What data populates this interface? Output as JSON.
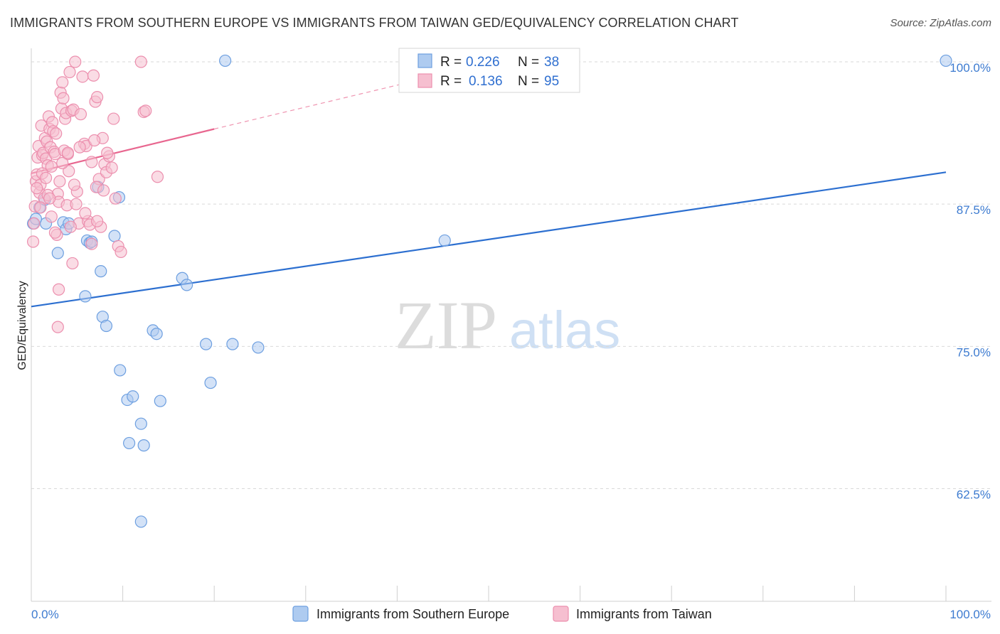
{
  "header": {
    "title": "IMMIGRANTS FROM SOUTHERN EUROPE VS IMMIGRANTS FROM TAIWAN GED/EQUIVALENCY CORRELATION CHART",
    "source": "Source: ZipAtlas.com"
  },
  "watermark": {
    "zip": "ZIP",
    "atlas": "atlas"
  },
  "colors": {
    "blue_fill": "#aecbf0",
    "blue_stroke": "#6d9fe0",
    "blue_line": "#2c6fd0",
    "pink_fill": "#f6bfd0",
    "pink_stroke": "#ec8fae",
    "pink_line": "#e8668f",
    "grid": "#d9d9d9",
    "tick_text": "#3d7bd0"
  },
  "legend": {
    "rows": [
      {
        "r_label": "R =",
        "r_value": "0.226",
        "n_label": "N =",
        "n_value": "38",
        "series": "blue"
      },
      {
        "r_label": "R =",
        "r_value": "0.136",
        "n_label": "N =",
        "n_value": "95",
        "series": "pink"
      }
    ]
  },
  "chart_data": {
    "type": "scatter",
    "title": "IMMIGRANTS FROM SOUTHERN EUROPE VS IMMIGRANTS FROM TAIWAN GED/EQUIVALENCY CORRELATION CHART",
    "xlabel": "",
    "ylabel": "GED/Equivalency",
    "xlim": [
      0,
      100
    ],
    "ylim": [
      52.6,
      102.0
    ],
    "x_tick_labels": [
      "0.0%",
      "100.0%"
    ],
    "y_ticks": [
      62.5,
      75.0,
      87.5,
      100.0
    ],
    "y_tick_labels": [
      "62.5%",
      "75.0%",
      "87.5%",
      "100.0%"
    ],
    "grid": true,
    "legend_position": "top-center",
    "series": [
      {
        "name": "Immigrants from Southern Europe",
        "color": "blue",
        "r": 0.226,
        "n": 38,
        "trend": {
          "x0": 0,
          "y0": 78.5,
          "x1": 100,
          "y1": 90.3
        },
        "points": [
          [
            0.2,
            85.8
          ],
          [
            0.9,
            87.2
          ],
          [
            1.5,
            87.9
          ],
          [
            1.6,
            85.8
          ],
          [
            2.9,
            83.2
          ],
          [
            3.5,
            85.9
          ],
          [
            3.8,
            85.3
          ],
          [
            4.1,
            85.8
          ],
          [
            6.1,
            84.3
          ],
          [
            6.4,
            84.1
          ],
          [
            6.6,
            84.2
          ],
          [
            5.9,
            79.4
          ],
          [
            7.3,
            89.0
          ],
          [
            7.6,
            81.6
          ],
          [
            7.8,
            77.6
          ],
          [
            8.2,
            76.8
          ],
          [
            9.1,
            84.7
          ],
          [
            9.6,
            88.1
          ],
          [
            9.7,
            72.9
          ],
          [
            10.5,
            70.3
          ],
          [
            11.1,
            70.6
          ],
          [
            10.7,
            66.5
          ],
          [
            12.0,
            68.2
          ],
          [
            12.3,
            66.3
          ],
          [
            12.0,
            59.6
          ],
          [
            13.3,
            76.4
          ],
          [
            13.7,
            76.1
          ],
          [
            14.1,
            70.2
          ],
          [
            16.5,
            81.0
          ],
          [
            17.0,
            80.4
          ],
          [
            19.1,
            75.2
          ],
          [
            19.6,
            71.8
          ],
          [
            22.0,
            75.2
          ],
          [
            24.8,
            74.9
          ],
          [
            21.2,
            100.1
          ],
          [
            45.2,
            84.3
          ],
          [
            100.0,
            100.1
          ],
          [
            0.5,
            86.2
          ]
        ]
      },
      {
        "name": "Immigrants from Taiwan",
        "color": "pink",
        "r": 0.136,
        "n": 95,
        "trend": {
          "x0": 0,
          "y0": 90.2,
          "x1": 20,
          "y1": 94.1
        },
        "trend_dashed": {
          "x0": 20,
          "y0": 94.1,
          "x1": 47,
          "y1": 99.3
        },
        "points": [
          [
            0.2,
            84.2
          ],
          [
            0.4,
            87.3
          ],
          [
            0.5,
            89.5
          ],
          [
            0.6,
            90.1
          ],
          [
            0.7,
            91.6
          ],
          [
            0.8,
            92.6
          ],
          [
            0.9,
            88.5
          ],
          [
            1.0,
            89.2
          ],
          [
            1.1,
            94.4
          ],
          [
            1.2,
            91.8
          ],
          [
            1.3,
            92.0
          ],
          [
            1.4,
            88.0
          ],
          [
            1.5,
            93.3
          ],
          [
            1.6,
            91.5
          ],
          [
            1.7,
            93.0
          ],
          [
            1.8,
            90.9
          ],
          [
            1.9,
            95.2
          ],
          [
            2.0,
            94.1
          ],
          [
            2.1,
            92.5
          ],
          [
            2.2,
            90.8
          ],
          [
            2.3,
            94.7
          ],
          [
            2.4,
            93.9
          ],
          [
            2.5,
            92.1
          ],
          [
            2.6,
            91.9
          ],
          [
            2.7,
            93.7
          ],
          [
            2.8,
            84.8
          ],
          [
            2.9,
            88.4
          ],
          [
            3.0,
            87.7
          ],
          [
            3.1,
            89.5
          ],
          [
            3.2,
            97.3
          ],
          [
            3.3,
            95.9
          ],
          [
            3.4,
            98.2
          ],
          [
            3.5,
            96.8
          ],
          [
            3.6,
            92.2
          ],
          [
            3.7,
            95.0
          ],
          [
            3.8,
            95.5
          ],
          [
            3.9,
            87.4
          ],
          [
            4.0,
            91.9
          ],
          [
            4.1,
            90.4
          ],
          [
            4.2,
            99.1
          ],
          [
            4.4,
            95.7
          ],
          [
            4.6,
            95.8
          ],
          [
            4.8,
            100.0
          ],
          [
            5.0,
            88.6
          ],
          [
            5.2,
            85.8
          ],
          [
            5.4,
            95.4
          ],
          [
            5.6,
            98.7
          ],
          [
            5.8,
            92.8
          ],
          [
            6.0,
            92.6
          ],
          [
            6.2,
            86.0
          ],
          [
            6.4,
            85.7
          ],
          [
            6.6,
            91.2
          ],
          [
            6.8,
            98.8
          ],
          [
            7.0,
            96.5
          ],
          [
            7.2,
            96.9
          ],
          [
            7.4,
            89.7
          ],
          [
            7.6,
            85.5
          ],
          [
            7.8,
            93.3
          ],
          [
            8.0,
            91.0
          ],
          [
            8.2,
            90.3
          ],
          [
            8.5,
            91.7
          ],
          [
            8.8,
            90.7
          ],
          [
            9.0,
            95.0
          ],
          [
            9.2,
            88.0
          ],
          [
            9.5,
            83.8
          ],
          [
            9.8,
            83.3
          ],
          [
            12.0,
            100.0
          ],
          [
            12.3,
            95.6
          ],
          [
            12.5,
            95.7
          ],
          [
            13.8,
            89.9
          ],
          [
            3.0,
            80.0
          ],
          [
            2.9,
            76.7
          ],
          [
            4.5,
            82.3
          ],
          [
            5.9,
            86.7
          ],
          [
            7.2,
            86.0
          ],
          [
            1.0,
            87.2
          ],
          [
            1.8,
            88.3
          ],
          [
            2.6,
            85.0
          ],
          [
            4.3,
            85.5
          ],
          [
            6.6,
            84.0
          ],
          [
            0.3,
            85.8
          ],
          [
            0.6,
            88.9
          ],
          [
            1.2,
            90.2
          ],
          [
            2.0,
            88.0
          ],
          [
            3.4,
            91.1
          ],
          [
            4.0,
            92.0
          ],
          [
            4.7,
            89.2
          ],
          [
            5.3,
            92.5
          ],
          [
            6.9,
            93.1
          ],
          [
            7.1,
            89.0
          ],
          [
            7.9,
            88.7
          ],
          [
            8.3,
            92.0
          ],
          [
            1.6,
            89.8
          ],
          [
            2.2,
            86.4
          ],
          [
            4.9,
            87.5
          ]
        ]
      }
    ]
  },
  "bottom_legend": [
    {
      "label": "Immigrants from Southern Europe",
      "series": "blue"
    },
    {
      "label": "Immigrants from Taiwan",
      "series": "pink"
    }
  ]
}
